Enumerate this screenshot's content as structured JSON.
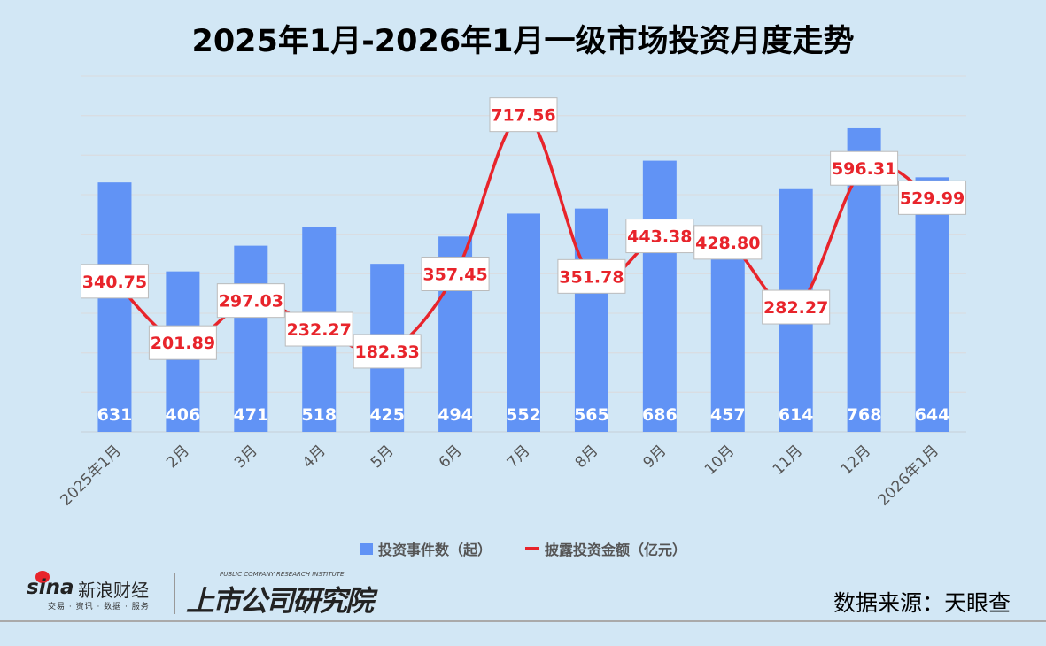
{
  "chart_data": {
    "type": "bar+line",
    "title": "2025年1月-2026年1月一级市场投资月度走势",
    "categories": [
      "2025年1月",
      "2月",
      "3月",
      "4月",
      "5月",
      "6月",
      "7月",
      "8月",
      "9月",
      "10月",
      "11月",
      "12月",
      "2026年1月"
    ],
    "series": [
      {
        "name": "投资事件数（起）",
        "type": "bar",
        "axis": "primary",
        "color": "#6193f5",
        "values": [
          631,
          406,
          471,
          518,
          425,
          494,
          552,
          565,
          686,
          457,
          614,
          768,
          644
        ]
      },
      {
        "name": "披露投资金额（亿元）",
        "type": "line",
        "smooth": true,
        "axis": "secondary",
        "color": "#e8242b",
        "values": [
          340.75,
          201.89,
          297.03,
          232.27,
          182.33,
          357.45,
          717.56,
          351.78,
          443.38,
          428.8,
          282.27,
          596.31,
          529.99
        ],
        "labels": [
          "340.75",
          "201.89",
          "297.03",
          "232.27",
          "182.33",
          "357.45",
          "717.56",
          "351.78",
          "443.38",
          "428.80",
          "282.27",
          "596.31",
          "529.99"
        ]
      }
    ],
    "primary_ylim": [
      0,
      900
    ],
    "secondary_ylim": [
      0,
      805
    ],
    "grid": true,
    "legend_position": "bottom"
  },
  "footer": {
    "sina_logo": "sina",
    "sina_name": "新浪财经",
    "sina_tagline": "交易 · 资讯 · 数据 · 服务",
    "institute_en": "PUBLIC COMPANY RESEARCH INSTITUTE",
    "institute_cn": "上市公司研究院",
    "source": "数据来源：天眼查"
  }
}
